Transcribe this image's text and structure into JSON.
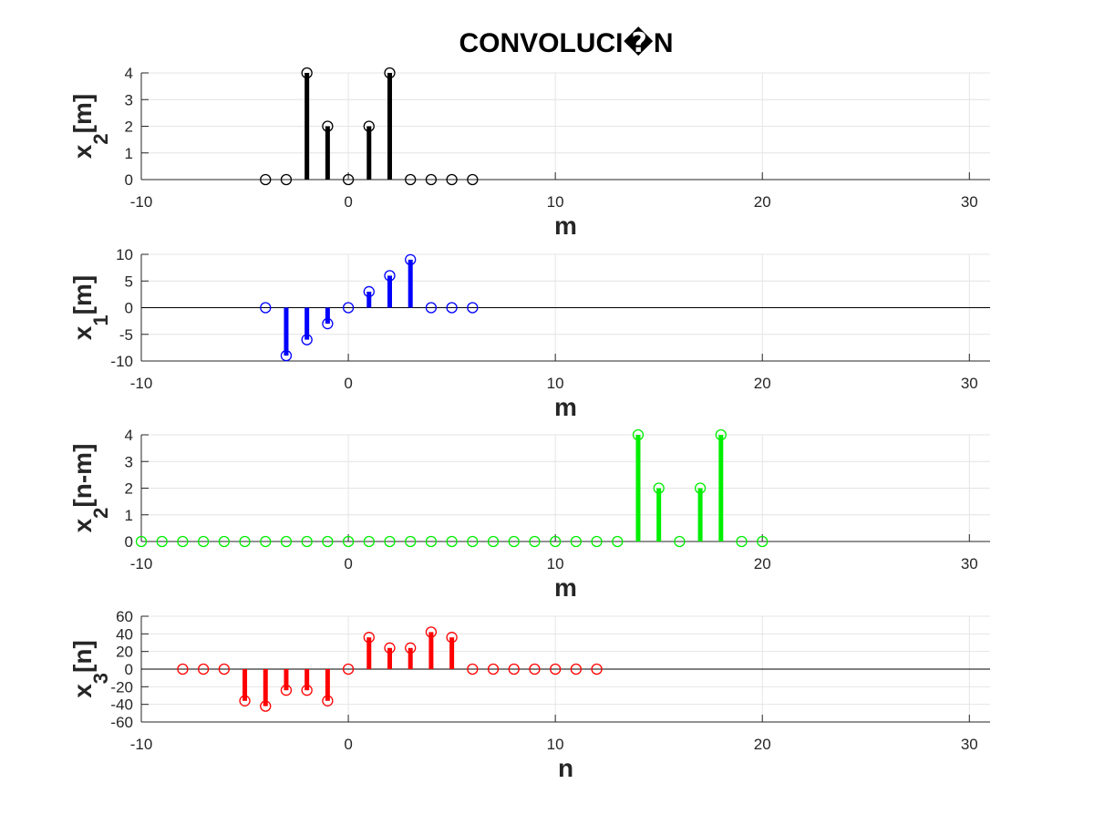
{
  "title": "CONVOLUCI�N",
  "chart_data": [
    {
      "type": "stem",
      "ylabel": {
        "base": "x",
        "sub": "2",
        "suffix": "[m]"
      },
      "xlabel": "m",
      "color": "#000000",
      "xlim": [
        -10,
        31
      ],
      "ylim": [
        0,
        4
      ],
      "xticks": [
        -10,
        0,
        10,
        20,
        30
      ],
      "yticks": [
        0,
        1,
        2,
        3,
        4
      ],
      "ytick_labels": [
        "0",
        "1",
        "2",
        "3",
        "4"
      ],
      "grid": true,
      "x": [
        -4,
        -3,
        -2,
        -1,
        0,
        1,
        2,
        3,
        4,
        5,
        6
      ],
      "y": [
        0,
        0,
        4,
        2,
        0,
        2,
        4,
        0,
        0,
        0,
        0
      ]
    },
    {
      "type": "stem",
      "ylabel": {
        "base": "x",
        "sub": "1",
        "suffix": "[m]"
      },
      "xlabel": "m",
      "color": "#0000ff",
      "xlim": [
        -10,
        31
      ],
      "ylim": [
        -10,
        10
      ],
      "xticks": [
        -10,
        0,
        10,
        20,
        30
      ],
      "yticks": [
        -10,
        -5,
        0,
        5,
        10
      ],
      "ytick_labels": [
        "-10",
        "-5",
        "0",
        "5",
        "10"
      ],
      "grid": true,
      "x": [
        -4,
        -3,
        -2,
        -1,
        0,
        1,
        2,
        3,
        4,
        5,
        6
      ],
      "y": [
        0,
        -9,
        -6,
        -3,
        0,
        3,
        6,
        9,
        0,
        0,
        0
      ]
    },
    {
      "type": "stem",
      "ylabel": {
        "base": "x",
        "sub": "2",
        "suffix": "[n-m]"
      },
      "xlabel": "m",
      "color": "#00ee00",
      "xlim": [
        -10,
        31
      ],
      "ylim": [
        0,
        4
      ],
      "xticks": [
        -10,
        0,
        10,
        20,
        30
      ],
      "yticks": [
        0,
        1,
        2,
        3,
        4
      ],
      "ytick_labels": [
        "0",
        "1",
        "2",
        "3",
        "4"
      ],
      "grid": true,
      "x": [
        -10,
        -9,
        -8,
        -7,
        -6,
        -5,
        -4,
        -3,
        -2,
        -1,
        0,
        1,
        2,
        3,
        4,
        5,
        6,
        7,
        8,
        9,
        10,
        11,
        12,
        13,
        14,
        15,
        16,
        17,
        18,
        19,
        20
      ],
      "y": [
        0,
        0,
        0,
        0,
        0,
        0,
        0,
        0,
        0,
        0,
        0,
        0,
        0,
        0,
        0,
        0,
        0,
        0,
        0,
        0,
        0,
        0,
        0,
        0,
        4,
        2,
        0,
        2,
        4,
        0,
        0
      ]
    },
    {
      "type": "stem",
      "ylabel": {
        "base": "x",
        "sub": "3",
        "suffix": "[n]"
      },
      "xlabel": "n",
      "color": "#ff0000",
      "xlim": [
        -10,
        31
      ],
      "ylim": [
        -60,
        60
      ],
      "xticks": [
        -10,
        0,
        10,
        20,
        30
      ],
      "yticks": [
        -60,
        -40,
        -20,
        0,
        20,
        40,
        60
      ],
      "ytick_labels": [
        "-60",
        "-40",
        "-20",
        "0",
        "20",
        "40",
        "60"
      ],
      "grid": true,
      "x": [
        -8,
        -7,
        -6,
        -5,
        -4,
        -3,
        -2,
        -1,
        0,
        1,
        2,
        3,
        4,
        5,
        6,
        7,
        8,
        9,
        10,
        11,
        12
      ],
      "y": [
        0,
        0,
        0,
        -36,
        -42,
        -24,
        -24,
        -36,
        0,
        36,
        24,
        24,
        42,
        36,
        0,
        0,
        0,
        0,
        0,
        0,
        0
      ]
    }
  ]
}
